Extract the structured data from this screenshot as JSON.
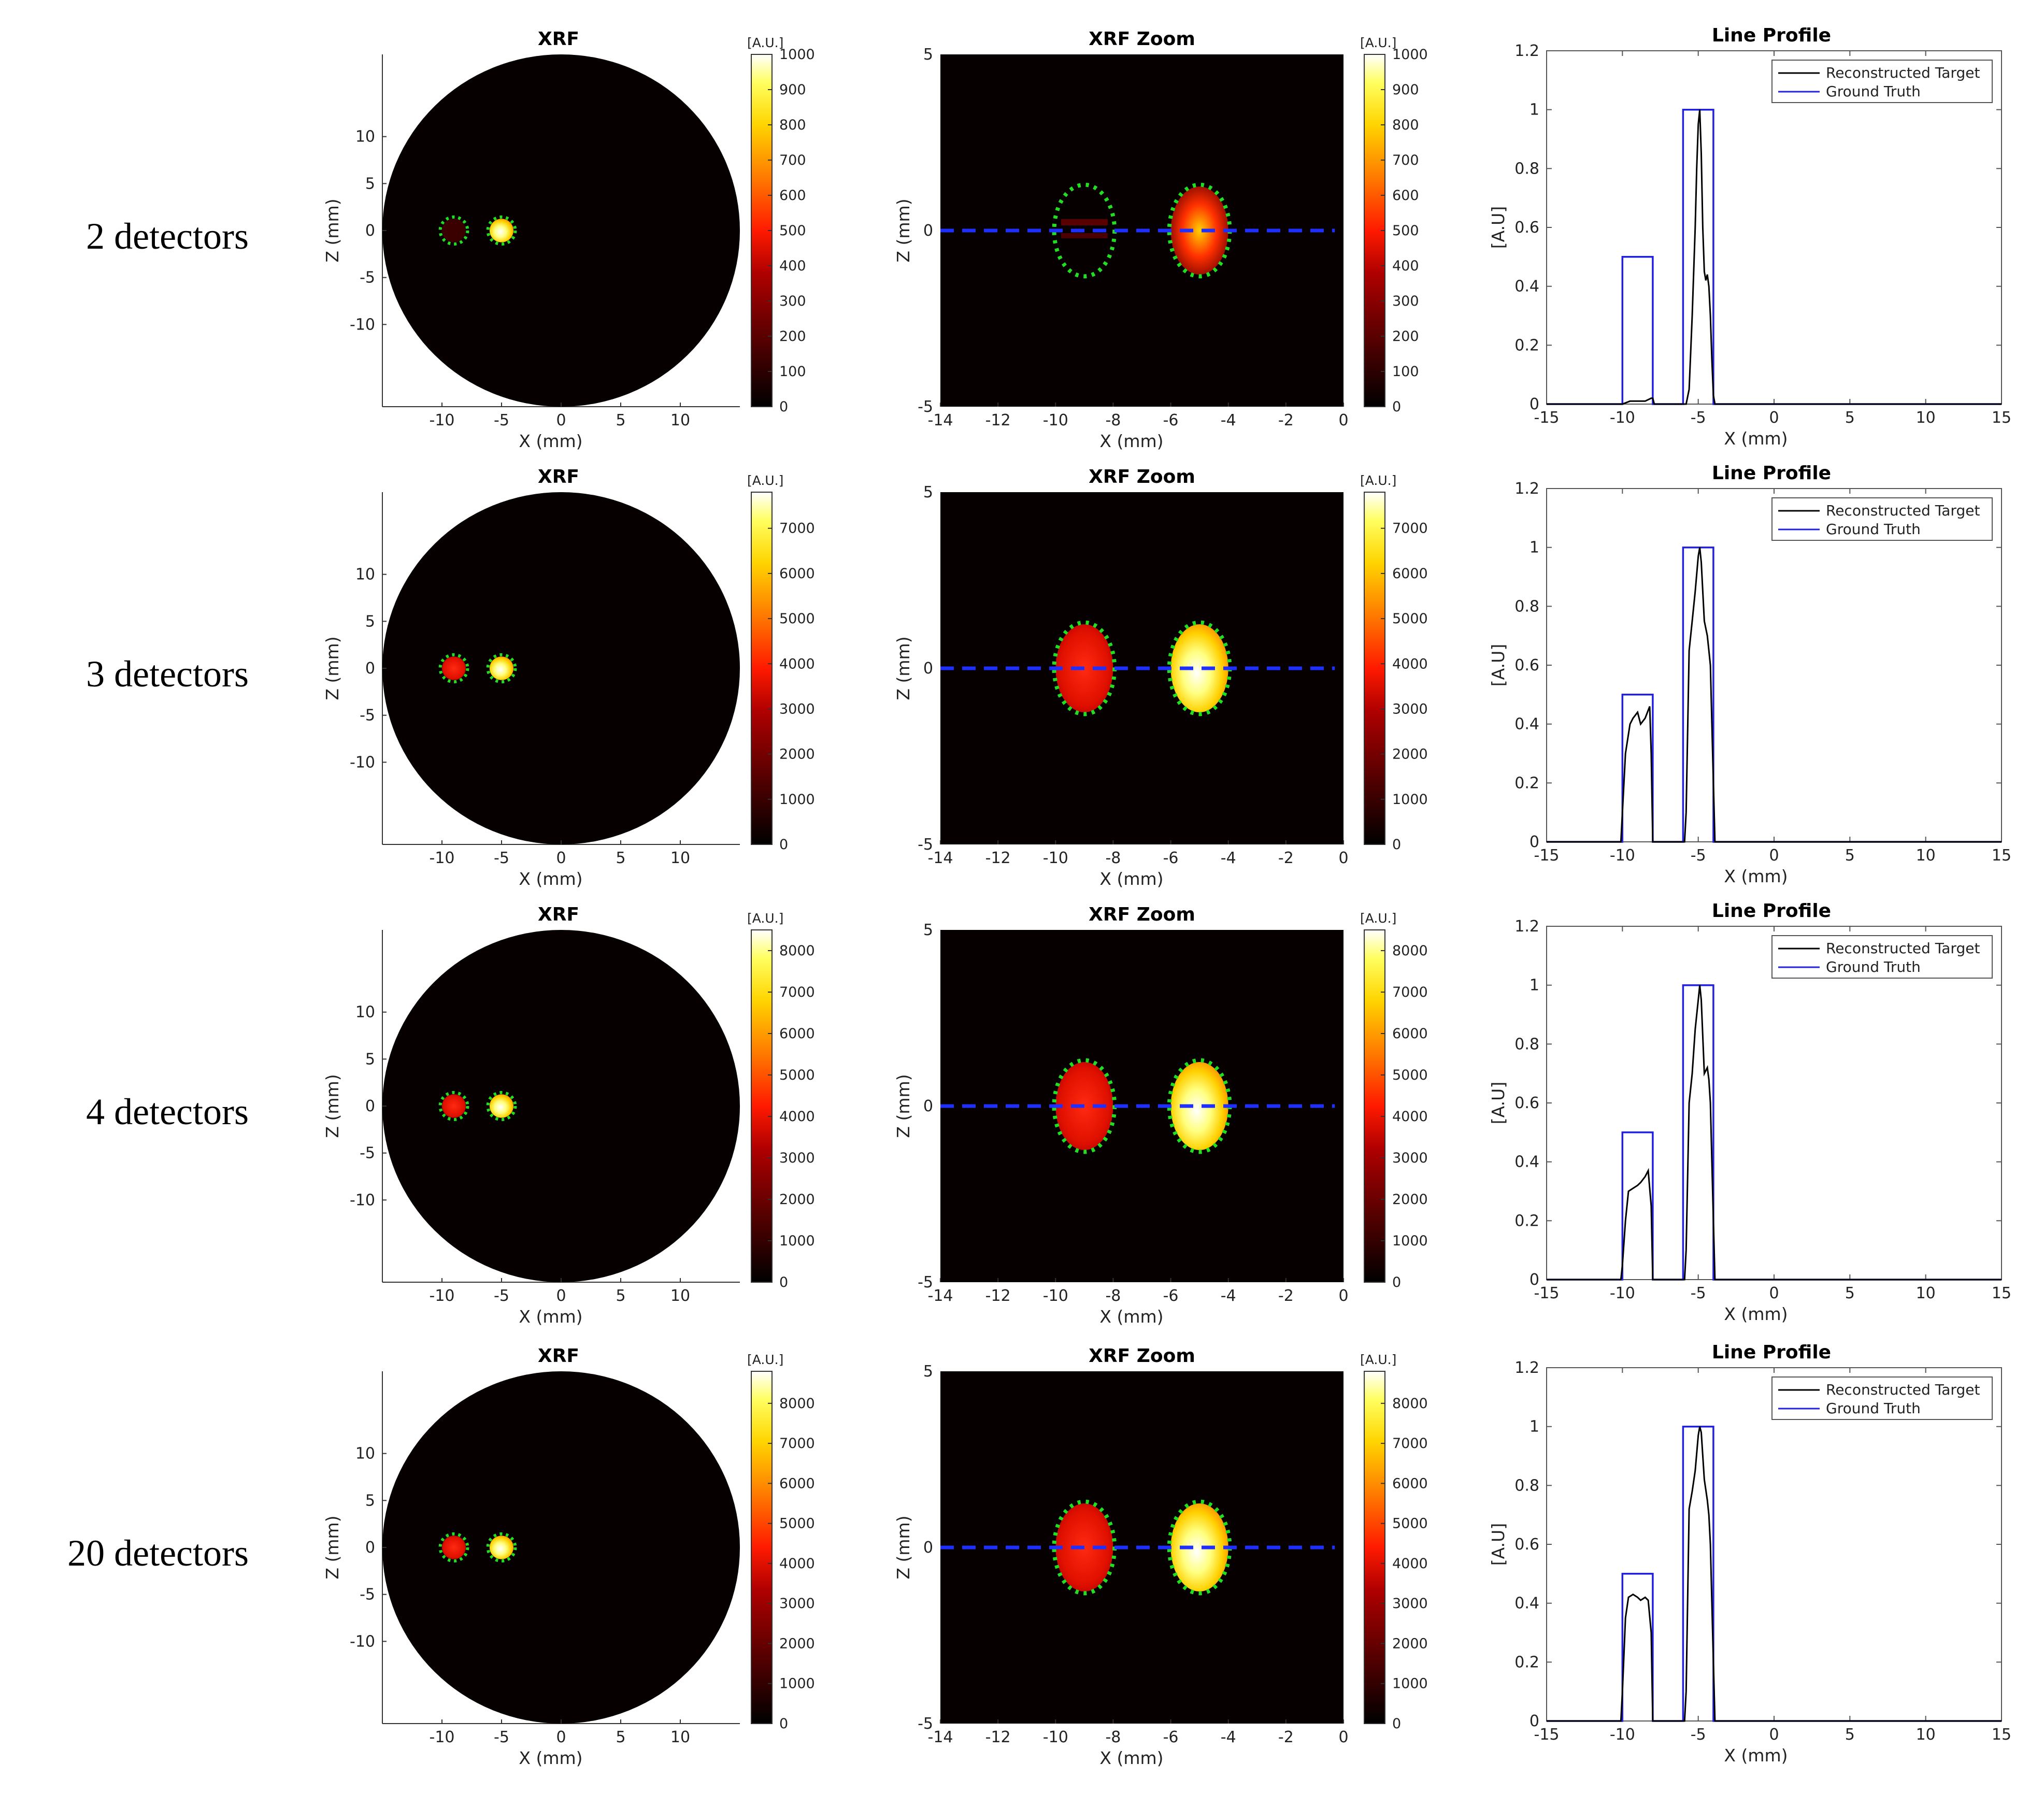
{
  "chart_data": [
    {
      "row_label": "2 detectors",
      "xrf": {
        "type": "heatmap",
        "title": "XRF",
        "xlabel": "X (mm)",
        "ylabel": "Z (mm)",
        "colorbar_unit": "[A.U.]",
        "colorbar_ticks": [
          0,
          100,
          200,
          300,
          400,
          500,
          600,
          700,
          800,
          900,
          1000
        ],
        "cmax": 1000,
        "xticks": [
          -10,
          -5,
          0,
          5,
          10
        ],
        "yticks": [
          10,
          5,
          0,
          -5,
          -10
        ],
        "xlim": [
          -15,
          15
        ],
        "ylim": [
          -15,
          15
        ],
        "targets": [
          {
            "x": -9,
            "z": 0,
            "r": 1,
            "intensity": 0.08
          },
          {
            "x": -5,
            "z": 0,
            "r": 1,
            "intensity": 0.7
          }
        ]
      },
      "zoom": {
        "type": "heatmap",
        "title": "XRF Zoom",
        "xlabel": "X (mm)",
        "ylabel": "Z (mm)",
        "colorbar_unit": "[A.U.]",
        "colorbar_ticks": [
          0,
          100,
          200,
          300,
          400,
          500,
          600,
          700,
          800,
          900,
          1000
        ],
        "cmax": 1000,
        "xticks": [
          -14,
          -12,
          -10,
          -8,
          -6,
          -4,
          -2,
          0
        ],
        "yticks": [
          5,
          0,
          -5
        ],
        "xlim": [
          -14,
          0
        ],
        "ylim": [
          -5,
          5
        ]
      },
      "profile": {
        "type": "line",
        "title": "Line Profile",
        "xlabel": "X (mm)",
        "ylabel": "[A.U]",
        "xticks": [
          -15,
          -10,
          -5,
          0,
          5,
          10,
          15
        ],
        "yticks": [
          0,
          0.2,
          0.4,
          0.6,
          0.8,
          1,
          1.2
        ],
        "xlim": [
          -15,
          15
        ],
        "ylim": [
          0,
          1.2
        ],
        "legend_position": "top-right",
        "series": [
          {
            "name": "Reconstructed Target",
            "color": "#000000",
            "x": [
              -15,
              -10.2,
              -10,
              -9.5,
              -9,
              -8.5,
              -8.1,
              -8,
              -7.9,
              -5.8,
              -5.6,
              -5.4,
              -5.2,
              -5.1,
              -5,
              -4.9,
              -4.8,
              -4.7,
              -4.6,
              -4.5,
              -4.4,
              -4.3,
              -4.2,
              -4.1,
              -4,
              -3.9,
              15
            ],
            "y": [
              0,
              0,
              0.0,
              0.01,
              0.01,
              0.01,
              0.02,
              0.02,
              0,
              0,
              0.05,
              0.3,
              0.6,
              0.8,
              0.95,
              1.0,
              0.85,
              0.6,
              0.45,
              0.42,
              0.44,
              0.4,
              0.3,
              0.15,
              0.03,
              0,
              0
            ]
          },
          {
            "name": "Ground Truth",
            "color": "#2222dd",
            "x": [
              -15,
              -10,
              -10,
              -8,
              -8,
              -6,
              -6,
              -4,
              -4,
              15
            ],
            "y": [
              0,
              0,
              0.5,
              0.5,
              0,
              0,
              1,
              1,
              0,
              0
            ]
          }
        ]
      }
    },
    {
      "row_label": "3 detectors",
      "xrf": {
        "type": "heatmap",
        "title": "XRF",
        "xlabel": "X (mm)",
        "ylabel": "Z (mm)",
        "colorbar_unit": "[A.U.]",
        "colorbar_ticks": [
          0,
          1000,
          2000,
          3000,
          4000,
          5000,
          6000,
          7000
        ],
        "cmax": 7800,
        "xticks": [
          -10,
          -5,
          0,
          5,
          10
        ],
        "yticks": [
          10,
          5,
          0,
          -5,
          -10
        ],
        "xlim": [
          -15,
          15
        ],
        "ylim": [
          -15,
          15
        ],
        "targets": [
          {
            "x": -9,
            "z": 0,
            "r": 1,
            "intensity": 0.45
          },
          {
            "x": -5,
            "z": 0,
            "r": 1,
            "intensity": 0.92
          }
        ]
      },
      "zoom": {
        "type": "heatmap",
        "title": "XRF Zoom",
        "xlabel": "X (mm)",
        "ylabel": "Z (mm)",
        "colorbar_unit": "[A.U.]",
        "colorbar_ticks": [
          0,
          1000,
          2000,
          3000,
          4000,
          5000,
          6000,
          7000
        ],
        "cmax": 7800,
        "xticks": [
          -14,
          -12,
          -10,
          -8,
          -6,
          -4,
          -2,
          0
        ],
        "yticks": [
          5,
          0,
          -5
        ],
        "xlim": [
          -14,
          0
        ],
        "ylim": [
          -5,
          5
        ]
      },
      "profile": {
        "type": "line",
        "title": "Line Profile",
        "xlabel": "X (mm)",
        "ylabel": "[A.U]",
        "xticks": [
          -15,
          -10,
          -5,
          0,
          5,
          10,
          15
        ],
        "yticks": [
          0,
          0.2,
          0.4,
          0.6,
          0.8,
          1,
          1.2
        ],
        "xlim": [
          -15,
          15
        ],
        "ylim": [
          0,
          1.2
        ],
        "legend_position": "top-right",
        "series": [
          {
            "name": "Reconstructed Target",
            "color": "#000000",
            "x": [
              -15,
              -10.1,
              -10,
              -9.8,
              -9.5,
              -9.3,
              -9,
              -8.8,
              -8.5,
              -8.2,
              -8.1,
              -8,
              -5.9,
              -5.8,
              -5.6,
              -5.4,
              -5.2,
              -5,
              -4.9,
              -4.8,
              -4.6,
              -4.4,
              -4.3,
              -4.2,
              -4.1,
              -4,
              -3.9,
              15
            ],
            "y": [
              0,
              0,
              0.1,
              0.3,
              0.4,
              0.42,
              0.44,
              0.4,
              0.42,
              0.46,
              0.3,
              0,
              0,
              0.1,
              0.65,
              0.75,
              0.85,
              0.97,
              1.0,
              0.95,
              0.75,
              0.7,
              0.65,
              0.6,
              0.4,
              0.2,
              0,
              0
            ]
          },
          {
            "name": "Ground Truth",
            "color": "#2222dd",
            "x": [
              -15,
              -10,
              -10,
              -8,
              -8,
              -6,
              -6,
              -4,
              -4,
              15
            ],
            "y": [
              0,
              0,
              0.5,
              0.5,
              0,
              0,
              1,
              1,
              0,
              0
            ]
          }
        ]
      }
    },
    {
      "row_label": "4 detectors",
      "xrf": {
        "type": "heatmap",
        "title": "XRF",
        "xlabel": "X (mm)",
        "ylabel": "Z (mm)",
        "colorbar_unit": "[A.U.]",
        "colorbar_ticks": [
          0,
          1000,
          2000,
          3000,
          4000,
          5000,
          6000,
          7000,
          8000
        ],
        "cmax": 8500,
        "xticks": [
          -10,
          -5,
          0,
          5,
          10
        ],
        "yticks": [
          10,
          5,
          0,
          -5,
          -10
        ],
        "xlim": [
          -15,
          15
        ],
        "ylim": [
          -15,
          15
        ],
        "targets": [
          {
            "x": -9,
            "z": 0,
            "r": 1,
            "intensity": 0.35
          },
          {
            "x": -5,
            "z": 0,
            "r": 1,
            "intensity": 0.92
          }
        ]
      },
      "zoom": {
        "type": "heatmap",
        "title": "XRF Zoom",
        "xlabel": "X (mm)",
        "ylabel": "Z (mm)",
        "colorbar_unit": "[A.U.]",
        "colorbar_ticks": [
          0,
          1000,
          2000,
          3000,
          4000,
          5000,
          6000,
          7000,
          8000
        ],
        "cmax": 8500,
        "xticks": [
          -14,
          -12,
          -10,
          -8,
          -6,
          -4,
          -2,
          0
        ],
        "yticks": [
          5,
          0,
          -5
        ],
        "xlim": [
          -14,
          0
        ],
        "ylim": [
          -5,
          5
        ]
      },
      "profile": {
        "type": "line",
        "title": "Line Profile",
        "xlabel": "X (mm)",
        "ylabel": "[A.U]",
        "xticks": [
          -15,
          -10,
          -5,
          0,
          5,
          10,
          15
        ],
        "yticks": [
          0,
          0.2,
          0.4,
          0.6,
          0.8,
          1,
          1.2
        ],
        "xlim": [
          -15,
          15
        ],
        "ylim": [
          0,
          1.2
        ],
        "legend_position": "top-right",
        "series": [
          {
            "name": "Reconstructed Target",
            "color": "#000000",
            "x": [
              -15,
              -10.1,
              -10,
              -9.8,
              -9.6,
              -9.3,
              -9,
              -8.8,
              -8.5,
              -8.3,
              -8.1,
              -8,
              -5.9,
              -5.8,
              -5.6,
              -5.4,
              -5.2,
              -5,
              -4.9,
              -4.8,
              -4.6,
              -4.4,
              -4.3,
              -4.2,
              -4.1,
              -4,
              -3.9,
              15
            ],
            "y": [
              0,
              0,
              0.05,
              0.2,
              0.3,
              0.31,
              0.32,
              0.33,
              0.35,
              0.37,
              0.25,
              0,
              0,
              0.1,
              0.6,
              0.7,
              0.85,
              0.95,
              1.0,
              0.95,
              0.7,
              0.72,
              0.68,
              0.6,
              0.4,
              0.2,
              0,
              0
            ]
          },
          {
            "name": "Ground Truth",
            "color": "#2222dd",
            "x": [
              -15,
              -10,
              -10,
              -8,
              -8,
              -6,
              -6,
              -4,
              -4,
              15
            ],
            "y": [
              0,
              0,
              0.5,
              0.5,
              0,
              0,
              1,
              1,
              0,
              0
            ]
          }
        ]
      }
    },
    {
      "row_label": "20 detectors",
      "xrf": {
        "type": "heatmap",
        "title": "XRF",
        "xlabel": "X (mm)",
        "ylabel": "Z (mm)",
        "colorbar_unit": "[A.U.]",
        "colorbar_ticks": [
          0,
          1000,
          2000,
          3000,
          4000,
          5000,
          6000,
          7000,
          8000
        ],
        "cmax": 8800,
        "xticks": [
          -10,
          -5,
          0,
          5,
          10
        ],
        "yticks": [
          10,
          5,
          0,
          -5,
          -10
        ],
        "xlim": [
          -15,
          15
        ],
        "ylim": [
          -15,
          15
        ],
        "targets": [
          {
            "x": -9,
            "z": 0,
            "r": 1,
            "intensity": 0.45
          },
          {
            "x": -5,
            "z": 0,
            "r": 1,
            "intensity": 0.92
          }
        ]
      },
      "zoom": {
        "type": "heatmap",
        "title": "XRF Zoom",
        "xlabel": "X (mm)",
        "ylabel": "Z (mm)",
        "colorbar_unit": "[A.U.]",
        "colorbar_ticks": [
          0,
          1000,
          2000,
          3000,
          4000,
          5000,
          6000,
          7000,
          8000
        ],
        "cmax": 8800,
        "xticks": [
          -14,
          -12,
          -10,
          -8,
          -6,
          -4,
          -2,
          0
        ],
        "yticks": [
          5,
          0,
          -5
        ],
        "xlim": [
          -14,
          0
        ],
        "ylim": [
          -5,
          5
        ]
      },
      "profile": {
        "type": "line",
        "title": "Line Profile",
        "xlabel": "X (mm)",
        "ylabel": "[A.U]",
        "xticks": [
          -15,
          -10,
          -5,
          0,
          5,
          10,
          15
        ],
        "yticks": [
          0,
          0.2,
          0.4,
          0.6,
          0.8,
          1,
          1.2
        ],
        "xlim": [
          -15,
          15
        ],
        "ylim": [
          0,
          1.2
        ],
        "legend_position": "top-right",
        "series": [
          {
            "name": "Reconstructed Target",
            "color": "#000000",
            "x": [
              -15,
              -10.1,
              -10,
              -9.8,
              -9.6,
              -9.3,
              -9,
              -8.8,
              -8.5,
              -8.3,
              -8.1,
              -8,
              -5.9,
              -5.8,
              -5.6,
              -5.4,
              -5.2,
              -5,
              -4.9,
              -4.8,
              -4.6,
              -4.4,
              -4.3,
              -4.2,
              -4.1,
              -4,
              -3.9,
              15
            ],
            "y": [
              0,
              0,
              0.1,
              0.35,
              0.42,
              0.43,
              0.42,
              0.41,
              0.42,
              0.41,
              0.3,
              0,
              0,
              0.1,
              0.72,
              0.78,
              0.85,
              0.97,
              1.0,
              0.98,
              0.82,
              0.75,
              0.7,
              0.6,
              0.4,
              0.2,
              0,
              0
            ]
          },
          {
            "name": "Ground Truth",
            "color": "#2222dd",
            "x": [
              -15,
              -10,
              -10,
              -8,
              -8,
              -6,
              -6,
              -4,
              -4,
              15
            ],
            "y": [
              0,
              0,
              0.5,
              0.5,
              0,
              0,
              1,
              1,
              0,
              0
            ]
          }
        ]
      }
    }
  ]
}
